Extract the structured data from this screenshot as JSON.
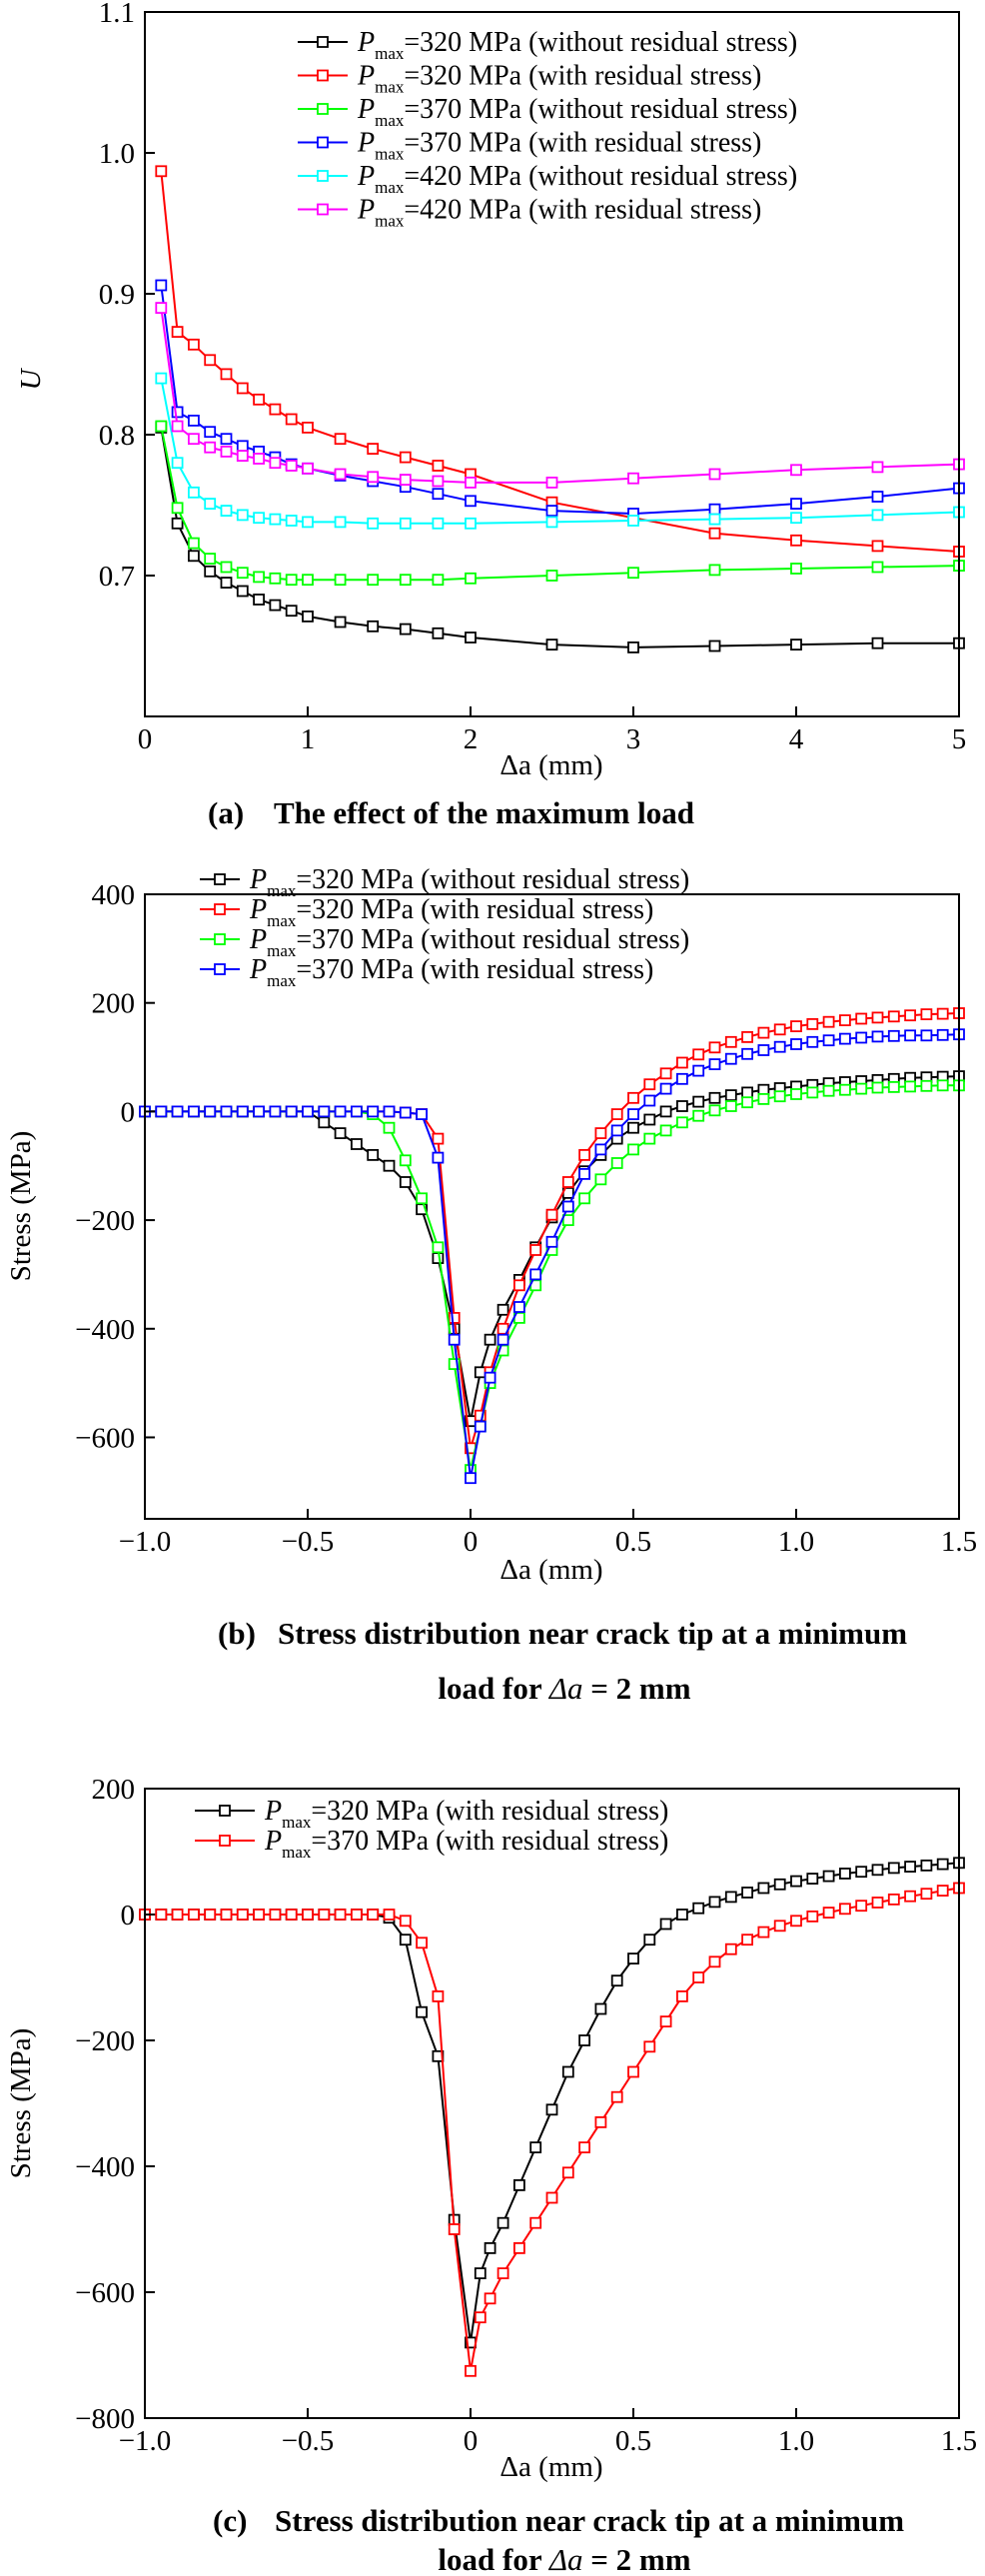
{
  "chart_data": [
    {
      "id": "a",
      "type": "line",
      "xlabel": "Δa (mm)",
      "ylabel": "U",
      "xlim": [
        0,
        5
      ],
      "ylim": [
        0.6,
        1.1
      ],
      "xticks": [
        "0",
        "1",
        "2",
        "3",
        "4",
        "5"
      ],
      "yticks": [
        "0.7",
        "0.8",
        "0.9",
        "1.0",
        "1.1"
      ],
      "caption": {
        "label": "(a)",
        "text": "The effect of the maximum load"
      },
      "series": [
        {
          "name_p": "P",
          "name_sub": "max",
          "name_rest": "=320 MPa (without residual stress)",
          "color": "#000000",
          "x": [
            0.1,
            0.2,
            0.3,
            0.4,
            0.5,
            0.6,
            0.7,
            0.8,
            0.9,
            1.0,
            1.2,
            1.4,
            1.6,
            1.8,
            2.0,
            2.5,
            3.0,
            3.5,
            4.0,
            4.5,
            5.0
          ],
          "y": [
            0.805,
            0.737,
            0.714,
            0.703,
            0.695,
            0.689,
            0.683,
            0.679,
            0.675,
            0.671,
            0.667,
            0.664,
            0.662,
            0.659,
            0.656,
            0.651,
            0.649,
            0.65,
            0.651,
            0.652,
            0.652
          ]
        },
        {
          "name_p": "P",
          "name_sub": "max",
          "name_rest": "=320 MPa (with residual stress)",
          "color": "#ff0000",
          "x": [
            0.1,
            0.2,
            0.3,
            0.4,
            0.5,
            0.6,
            0.7,
            0.8,
            0.9,
            1.0,
            1.2,
            1.4,
            1.6,
            1.8,
            2.0,
            2.5,
            3.0,
            3.5,
            4.0,
            4.5,
            5.0
          ],
          "y": [
            0.987,
            0.873,
            0.864,
            0.853,
            0.843,
            0.833,
            0.825,
            0.818,
            0.811,
            0.805,
            0.797,
            0.79,
            0.784,
            0.778,
            0.772,
            0.752,
            0.741,
            0.73,
            0.725,
            0.721,
            0.717
          ]
        },
        {
          "name_p": "P",
          "name_sub": "max",
          "name_rest": "=370 MPa (without residual stress)",
          "color": "#00ff00",
          "x": [
            0.1,
            0.2,
            0.3,
            0.4,
            0.5,
            0.6,
            0.7,
            0.8,
            0.9,
            1.0,
            1.2,
            1.4,
            1.6,
            1.8,
            2.0,
            2.5,
            3.0,
            3.5,
            4.0,
            4.5,
            5.0
          ],
          "y": [
            0.806,
            0.748,
            0.723,
            0.712,
            0.706,
            0.702,
            0.699,
            0.698,
            0.697,
            0.697,
            0.697,
            0.697,
            0.697,
            0.697,
            0.698,
            0.7,
            0.702,
            0.704,
            0.705,
            0.706,
            0.707
          ]
        },
        {
          "name_p": "P",
          "name_sub": "max",
          "name_rest": "=370 MPa (with residual stress)",
          "color": "#0000ff",
          "x": [
            0.1,
            0.2,
            0.3,
            0.4,
            0.5,
            0.6,
            0.7,
            0.8,
            0.9,
            1.0,
            1.2,
            1.4,
            1.6,
            1.8,
            2.0,
            2.5,
            3.0,
            3.5,
            4.0,
            4.5,
            5.0
          ],
          "y": [
            0.906,
            0.816,
            0.81,
            0.802,
            0.797,
            0.792,
            0.788,
            0.784,
            0.779,
            0.776,
            0.771,
            0.767,
            0.763,
            0.758,
            0.753,
            0.746,
            0.744,
            0.747,
            0.751,
            0.756,
            0.762
          ]
        },
        {
          "name_p": "P",
          "name_sub": "max",
          "name_rest": "=420 MPa (without residual stress)",
          "color": "#00ffff",
          "x": [
            0.1,
            0.2,
            0.3,
            0.4,
            0.5,
            0.6,
            0.7,
            0.8,
            0.9,
            1.0,
            1.2,
            1.4,
            1.6,
            1.8,
            2.0,
            2.5,
            3.0,
            3.5,
            4.0,
            4.5,
            5.0
          ],
          "y": [
            0.84,
            0.78,
            0.759,
            0.751,
            0.746,
            0.743,
            0.741,
            0.74,
            0.739,
            0.738,
            0.738,
            0.737,
            0.737,
            0.737,
            0.737,
            0.738,
            0.739,
            0.74,
            0.741,
            0.743,
            0.745
          ]
        },
        {
          "name_p": "P",
          "name_sub": "max",
          "name_rest": "=420 MPa (with residual stress)",
          "color": "#ff00ff",
          "x": [
            0.1,
            0.2,
            0.3,
            0.4,
            0.5,
            0.6,
            0.7,
            0.8,
            0.9,
            1.0,
            1.2,
            1.4,
            1.6,
            1.8,
            2.0,
            2.5,
            3.0,
            3.5,
            4.0,
            4.5,
            5.0
          ],
          "y": [
            0.89,
            0.806,
            0.797,
            0.791,
            0.788,
            0.785,
            0.783,
            0.78,
            0.778,
            0.776,
            0.772,
            0.77,
            0.768,
            0.767,
            0.766,
            0.766,
            0.769,
            0.772,
            0.775,
            0.777,
            0.779
          ]
        }
      ]
    },
    {
      "id": "b",
      "type": "line",
      "xlabel": "Δa (mm)",
      "ylabel": "Stress (MPa)",
      "xlim": [
        -1.0,
        1.5
      ],
      "ylim": [
        -750,
        400
      ],
      "xticks": [
        "−1.0",
        "−0.5",
        "0",
        "0.5",
        "1.0",
        "1.5"
      ],
      "yticks": [
        "−600",
        "−400",
        "−200",
        "0",
        "200",
        "400"
      ],
      "caption": {
        "label": "(b)",
        "line1": "Stress distribution near crack tip at a minimum",
        "line2_pre": "load for ",
        "line2_var": "Δa",
        "line2_post": " = 2 mm"
      },
      "series": [
        {
          "name_p": "P",
          "name_sub": "max",
          "name_rest": "=320 MPa (without residual stress)",
          "color": "#000000",
          "x": [
            -1.0,
            -0.95,
            -0.9,
            -0.85,
            -0.8,
            -0.75,
            -0.7,
            -0.65,
            -0.6,
            -0.55,
            -0.5,
            -0.45,
            -0.4,
            -0.35,
            -0.3,
            -0.25,
            -0.2,
            -0.15,
            -0.1,
            -0.05,
            0.0,
            0.03,
            0.06,
            0.1,
            0.15,
            0.2,
            0.25,
            0.3,
            0.35,
            0.4,
            0.45,
            0.5,
            0.55,
            0.6,
            0.65,
            0.7,
            0.75,
            0.8,
            0.85,
            0.9,
            0.95,
            1.0,
            1.05,
            1.1,
            1.15,
            1.2,
            1.25,
            1.3,
            1.35,
            1.4,
            1.45,
            1.5
          ],
          "y": [
            0,
            0,
            0,
            0,
            0,
            0,
            0,
            0,
            0,
            0,
            0,
            -20,
            -40,
            -60,
            -80,
            -100,
            -130,
            -180,
            -270,
            -400,
            -570,
            -480,
            -420,
            -365,
            -310,
            -250,
            -195,
            -150,
            -110,
            -80,
            -50,
            -30,
            -15,
            0,
            10,
            18,
            25,
            30,
            35,
            40,
            43,
            46,
            49,
            52,
            54,
            56,
            58,
            60,
            62,
            63,
            64,
            65
          ]
        },
        {
          "name_p": "P",
          "name_sub": "max",
          "name_rest": "=320 MPa (with residual stress)",
          "color": "#ff0000",
          "x": [
            -1.0,
            -0.95,
            -0.9,
            -0.85,
            -0.8,
            -0.75,
            -0.7,
            -0.65,
            -0.6,
            -0.55,
            -0.5,
            -0.45,
            -0.4,
            -0.35,
            -0.3,
            -0.25,
            -0.2,
            -0.15,
            -0.1,
            -0.05,
            0.0,
            0.03,
            0.06,
            0.1,
            0.15,
            0.2,
            0.25,
            0.3,
            0.35,
            0.4,
            0.45,
            0.5,
            0.55,
            0.6,
            0.65,
            0.7,
            0.75,
            0.8,
            0.85,
            0.9,
            0.95,
            1.0,
            1.05,
            1.1,
            1.15,
            1.2,
            1.25,
            1.3,
            1.35,
            1.4,
            1.45,
            1.5
          ],
          "y": [
            0,
            0,
            0,
            0,
            0,
            0,
            0,
            0,
            0,
            0,
            0,
            0,
            0,
            0,
            0,
            0,
            -2,
            -5,
            -50,
            -380,
            -620,
            -560,
            -480,
            -400,
            -320,
            -255,
            -190,
            -130,
            -80,
            -40,
            -5,
            25,
            50,
            70,
            90,
            105,
            118,
            128,
            137,
            145,
            151,
            157,
            161,
            165,
            168,
            171,
            173,
            175,
            177,
            179,
            180,
            181
          ]
        },
        {
          "name_p": "P",
          "name_sub": "max",
          "name_rest": "=370 MPa (without residual stress)",
          "color": "#00ff00",
          "x": [
            -1.0,
            -0.95,
            -0.9,
            -0.85,
            -0.8,
            -0.75,
            -0.7,
            -0.65,
            -0.6,
            -0.55,
            -0.5,
            -0.45,
            -0.4,
            -0.35,
            -0.3,
            -0.25,
            -0.2,
            -0.15,
            -0.1,
            -0.05,
            0.0,
            0.03,
            0.06,
            0.1,
            0.15,
            0.2,
            0.25,
            0.3,
            0.35,
            0.4,
            0.45,
            0.5,
            0.55,
            0.6,
            0.65,
            0.7,
            0.75,
            0.8,
            0.85,
            0.9,
            0.95,
            1.0,
            1.05,
            1.1,
            1.15,
            1.2,
            1.25,
            1.3,
            1.35,
            1.4,
            1.45,
            1.5
          ],
          "y": [
            0,
            0,
            0,
            0,
            0,
            0,
            0,
            0,
            0,
            0,
            0,
            0,
            0,
            0,
            -5,
            -30,
            -90,
            -160,
            -250,
            -465,
            -660,
            -580,
            -500,
            -440,
            -380,
            -320,
            -255,
            -200,
            -160,
            -125,
            -95,
            -70,
            -50,
            -35,
            -20,
            -8,
            2,
            10,
            17,
            23,
            28,
            32,
            35,
            38,
            40,
            42,
            44,
            45,
            46,
            47,
            48,
            48
          ]
        },
        {
          "name_p": "P",
          "name_sub": "max",
          "name_rest": "=370 MPa (with residual stress)",
          "color": "#0000ff",
          "x": [
            -1.0,
            -0.95,
            -0.9,
            -0.85,
            -0.8,
            -0.75,
            -0.7,
            -0.65,
            -0.6,
            -0.55,
            -0.5,
            -0.45,
            -0.4,
            -0.35,
            -0.3,
            -0.25,
            -0.2,
            -0.15,
            -0.1,
            -0.05,
            0.0,
            0.03,
            0.06,
            0.1,
            0.15,
            0.2,
            0.25,
            0.3,
            0.35,
            0.4,
            0.45,
            0.5,
            0.55,
            0.6,
            0.65,
            0.7,
            0.75,
            0.8,
            0.85,
            0.9,
            0.95,
            1.0,
            1.05,
            1.1,
            1.15,
            1.2,
            1.25,
            1.3,
            1.35,
            1.4,
            1.45,
            1.5
          ],
          "y": [
            0,
            0,
            0,
            0,
            0,
            0,
            0,
            0,
            0,
            0,
            0,
            0,
            0,
            0,
            0,
            0,
            -2,
            -5,
            -85,
            -420,
            -675,
            -580,
            -490,
            -420,
            -360,
            -300,
            -240,
            -175,
            -115,
            -70,
            -35,
            -5,
            20,
            42,
            60,
            75,
            87,
            97,
            106,
            113,
            119,
            124,
            128,
            131,
            134,
            136,
            138,
            139,
            140,
            140,
            141,
            142
          ]
        }
      ]
    },
    {
      "id": "c",
      "type": "line",
      "xlabel": "Δa (mm)",
      "ylabel": "Stress (MPa)",
      "xlim": [
        -1.0,
        1.5
      ],
      "ylim": [
        -800,
        200
      ],
      "xticks": [
        "−1.0",
        "−0.5",
        "0",
        "0.5",
        "1.0",
        "1.5"
      ],
      "yticks": [
        "−800",
        "−600",
        "−400",
        "−200",
        "0",
        "200"
      ],
      "caption": {
        "label": "(c)",
        "line1": "Stress distribution near crack tip at a minimum",
        "line2_pre": "load for ",
        "line2_var": "Δa",
        "line2_post": " = 2 mm"
      },
      "series": [
        {
          "name_p": "P",
          "name_sub": "max",
          "name_rest": "=320 MPa (with residual stress)",
          "color": "#000000",
          "x": [
            -1.0,
            -0.95,
            -0.9,
            -0.85,
            -0.8,
            -0.75,
            -0.7,
            -0.65,
            -0.6,
            -0.55,
            -0.5,
            -0.45,
            -0.4,
            -0.35,
            -0.3,
            -0.25,
            -0.2,
            -0.15,
            -0.1,
            -0.05,
            0.0,
            0.03,
            0.06,
            0.1,
            0.15,
            0.2,
            0.25,
            0.3,
            0.35,
            0.4,
            0.45,
            0.5,
            0.55,
            0.6,
            0.65,
            0.7,
            0.75,
            0.8,
            0.85,
            0.9,
            0.95,
            1.0,
            1.05,
            1.1,
            1.15,
            1.2,
            1.25,
            1.3,
            1.35,
            1.4,
            1.45,
            1.5
          ],
          "y": [
            0,
            0,
            0,
            0,
            0,
            0,
            0,
            0,
            0,
            0,
            0,
            0,
            0,
            0,
            0,
            -5,
            -40,
            -155,
            -225,
            -485,
            -680,
            -570,
            -530,
            -490,
            -430,
            -370,
            -310,
            -250,
            -200,
            -150,
            -105,
            -70,
            -40,
            -15,
            0,
            10,
            20,
            28,
            35,
            42,
            48,
            53,
            57,
            61,
            65,
            68,
            71,
            74,
            76,
            78,
            80,
            82
          ]
        },
        {
          "name_p": "P",
          "name_sub": "max",
          "name_rest": "=370 MPa (with residual stress)",
          "color": "#ff0000",
          "x": [
            -1.0,
            -0.95,
            -0.9,
            -0.85,
            -0.8,
            -0.75,
            -0.7,
            -0.65,
            -0.6,
            -0.55,
            -0.5,
            -0.45,
            -0.4,
            -0.35,
            -0.3,
            -0.25,
            -0.2,
            -0.15,
            -0.1,
            -0.05,
            0.0,
            0.03,
            0.06,
            0.1,
            0.15,
            0.2,
            0.25,
            0.3,
            0.35,
            0.4,
            0.45,
            0.5,
            0.55,
            0.6,
            0.65,
            0.7,
            0.75,
            0.8,
            0.85,
            0.9,
            0.95,
            1.0,
            1.05,
            1.1,
            1.15,
            1.2,
            1.25,
            1.3,
            1.35,
            1.4,
            1.45,
            1.5
          ],
          "y": [
            0,
            0,
            0,
            0,
            0,
            0,
            0,
            0,
            0,
            0,
            0,
            0,
            0,
            0,
            0,
            0,
            -10,
            -45,
            -130,
            -500,
            -725,
            -640,
            -610,
            -570,
            -530,
            -490,
            -450,
            -410,
            -370,
            -330,
            -290,
            -250,
            -210,
            -170,
            -130,
            -100,
            -75,
            -55,
            -40,
            -28,
            -18,
            -10,
            -3,
            3,
            9,
            14,
            19,
            24,
            29,
            33,
            38,
            42
          ]
        }
      ]
    }
  ]
}
